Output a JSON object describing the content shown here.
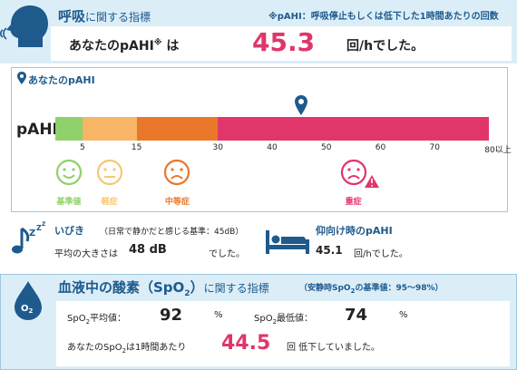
{
  "header": {
    "title_big": "呼吸",
    "title_rest": "に関する指標",
    "note": "※pAHI：呼吸停止もしくは低下した1時間あたりの回数",
    "result_label": "あなたのpAHI",
    "result_mark": "※",
    "result_particle": "は",
    "result_value": "45.3",
    "result_unit": "回/hでした。",
    "icon": "breathing-head-icon"
  },
  "scale": {
    "tag": "あなたのpAHI",
    "tag_icon": "location-pin-icon",
    "label": "pAHI",
    "marker_value": 45.3,
    "max": 80,
    "ticks": [
      "5",
      "15",
      "30",
      "40",
      "50",
      "60",
      "70",
      "80以上"
    ],
    "segments": [
      {
        "from": 0,
        "to": 5,
        "color": "#8fd16a"
      },
      {
        "from": 5,
        "to": 15,
        "color": "#f7b565"
      },
      {
        "from": 15,
        "to": 30,
        "color": "#e9782a"
      },
      {
        "from": 30,
        "to": 80,
        "color": "#e0366a"
      }
    ],
    "faces": [
      {
        "label": "基準値",
        "color": "#8fd16a",
        "mood": "happy"
      },
      {
        "label": "軽症",
        "color": "#f7c775",
        "mood": "neutral"
      },
      {
        "label": "中等症",
        "color": "#e9782a",
        "mood": "sad"
      },
      {
        "label": "重症",
        "color": "#e0366a",
        "mood": "sad",
        "warning": true
      }
    ]
  },
  "snore": {
    "title": "いびき",
    "note": "（日常で静かだと感じる基準：45dB）",
    "avg_label": "平均の大きさは",
    "avg_value": "48 dB",
    "avg_unit": "でした。",
    "icon": "snore-music-icon"
  },
  "supine": {
    "title": "仰向け時のpAHI",
    "value": "45.1",
    "unit": "回/hでした。",
    "icon": "bed-person-icon"
  },
  "oxygen": {
    "title_big_pre": "血液中の酸素（SpO",
    "title_big_sub": "2",
    "title_big_post": "）",
    "title_rest": "に関する指標",
    "note_pre": "（安静時SpO",
    "note_sub": "2",
    "note_post": "の基準値：95～98%）",
    "icon": "o2-drop-icon",
    "icon_text": "O",
    "icon_sub": "2",
    "avg_label_pre": "SpO",
    "avg_label_sub": "2",
    "avg_label_post": "平均値：",
    "avg_value": "92",
    "avg_unit": "%",
    "min_label_pre": "SpO",
    "min_label_sub": "2",
    "min_label_post": "最低値：",
    "min_value": "74",
    "min_unit": "%",
    "drop_label_pre": "あなたのSpO",
    "drop_label_sub": "2",
    "drop_label_post": "は1時間あたり",
    "drop_value": "44.5",
    "drop_unit": "回 低下していました。"
  },
  "colors": {
    "accent_blue": "#1e5a8c",
    "highlight_pink": "#e0366a",
    "band_bg": "#dbeef8"
  }
}
